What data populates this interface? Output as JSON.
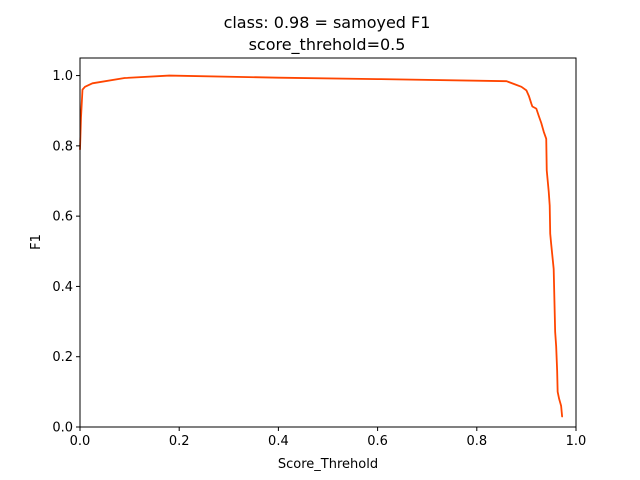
{
  "chart_data": {
    "type": "line",
    "title": "class: 0.98 = samoyed F1",
    "subtitle": "score_threhold=0.5",
    "xlabel": "Score_Threhold",
    "ylabel": "F1",
    "xlim": [
      0.0,
      1.0
    ],
    "ylim": [
      0.0,
      1.05
    ],
    "xticks": [
      "0.0",
      "0.2",
      "0.4",
      "0.6",
      "0.8",
      "1.0"
    ],
    "yticks": [
      "0.0",
      "0.2",
      "0.4",
      "0.6",
      "0.8",
      "1.0"
    ],
    "grid": false,
    "series": [
      {
        "color": "#ff4500",
        "x": [
          0.0,
          0.002,
          0.005,
          0.01,
          0.025,
          0.09,
          0.18,
          0.4,
          0.6,
          0.86,
          0.875,
          0.89,
          0.9,
          0.905,
          0.91,
          0.912,
          0.92,
          0.925,
          0.93,
          0.935,
          0.94,
          0.941,
          0.945,
          0.947,
          0.948,
          0.95,
          0.955,
          0.958,
          0.96,
          0.962,
          0.963,
          0.966,
          0.97,
          0.972
        ],
        "y": [
          0.79,
          0.88,
          0.96,
          0.968,
          0.978,
          0.993,
          1.0,
          0.994,
          0.99,
          0.984,
          0.976,
          0.968,
          0.958,
          0.942,
          0.92,
          0.912,
          0.906,
          0.885,
          0.865,
          0.84,
          0.82,
          0.73,
          0.67,
          0.63,
          0.55,
          0.52,
          0.45,
          0.27,
          0.23,
          0.16,
          0.1,
          0.08,
          0.06,
          0.03
        ]
      }
    ]
  }
}
